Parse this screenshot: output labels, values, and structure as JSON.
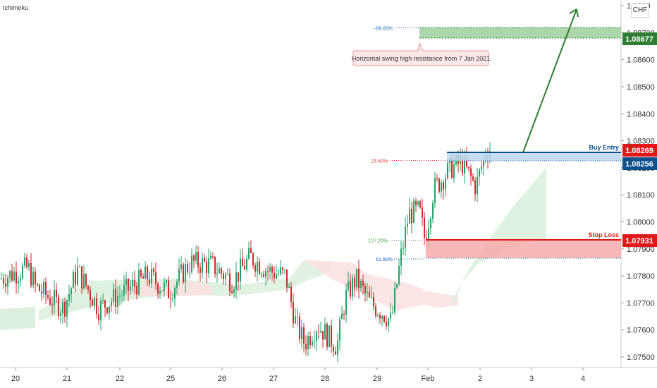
{
  "chart_data": {
    "type": "candlestick",
    "indicator": "Ichimoku",
    "currency_button": "CHF",
    "ylim": [
      1.0745,
      1.088
    ],
    "y_ticks": [
      "1.07500",
      "1.07600",
      "1.07700",
      "1.07800",
      "1.07900",
      "1.08000",
      "1.08100",
      "1.08200",
      "1.08300",
      "1.08400",
      "1.08500",
      "1.08600",
      "1.08700",
      "1.0880"
    ],
    "x_ticks": [
      "20",
      "21",
      "22",
      "25",
      "26",
      "27",
      "28",
      "29",
      "Feb",
      "2",
      "3",
      "4"
    ],
    "levels": {
      "take_profit": {
        "price": 1.08677,
        "label": "1.08677",
        "color": "#2e7d32"
      },
      "buy_entry": {
        "price": 1.08256,
        "label": "1.08256",
        "text": "Buy Entry",
        "color": "#0b4f8c"
      },
      "current_price": {
        "price": 1.08269,
        "label": "1.08269",
        "color": "#e01818"
      },
      "stop_loss": {
        "price": 1.07931,
        "label": "1.07931",
        "text": "Stop Loss",
        "color": "#e01818"
      }
    },
    "fib_labels": [
      {
        "text": "-68.00%",
        "price": 1.08718,
        "color": "#1565c0"
      },
      {
        "text": "23.60%",
        "price": 1.08227,
        "color": "#e53935"
      },
      {
        "text": "127.20%",
        "price": 1.07932,
        "color": "#43a047"
      },
      {
        "text": "61.80%",
        "price": 1.07863,
        "color": "#1565c0"
      }
    ],
    "annotation": "Horizontal swing high resistance from 7 Jan 2021",
    "colors": {
      "up": "#26a269",
      "down": "#cc2b2b",
      "cloud_green": "#d9eedb",
      "cloud_red": "#fbe1e1"
    }
  }
}
